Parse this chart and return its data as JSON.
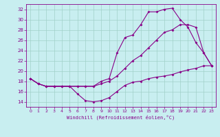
{
  "xlabel": "Windchill (Refroidissement éolien,°C)",
  "background_color": "#c8eef0",
  "grid_color": "#a0d0c8",
  "line_color": "#880088",
  "spine_color": "#660066",
  "xlim": [
    -0.5,
    23.5
  ],
  "ylim": [
    13,
    33
  ],
  "yticks": [
    14,
    16,
    18,
    20,
    22,
    24,
    26,
    28,
    30,
    32
  ],
  "xticks": [
    0,
    1,
    2,
    3,
    4,
    5,
    6,
    7,
    8,
    9,
    10,
    11,
    12,
    13,
    14,
    15,
    16,
    17,
    18,
    19,
    20,
    21,
    22,
    23
  ],
  "series1_x": [
    0,
    1,
    2,
    3,
    4,
    5,
    6,
    7,
    8,
    9,
    10,
    11,
    12,
    13,
    14,
    15,
    16,
    17,
    18,
    19,
    20,
    21,
    22,
    23
  ],
  "series1_y": [
    18.5,
    17.5,
    17.0,
    17.0,
    17.0,
    17.0,
    15.5,
    14.2,
    14.0,
    14.2,
    14.8,
    16.0,
    17.2,
    17.8,
    18.0,
    18.5,
    18.8,
    19.0,
    19.3,
    19.8,
    20.2,
    20.5,
    21.0,
    21.0
  ],
  "series2_x": [
    0,
    1,
    2,
    3,
    4,
    5,
    6,
    7,
    8,
    9,
    10,
    11,
    12,
    13,
    14,
    15,
    16,
    17,
    18,
    19,
    20,
    21,
    22,
    23
  ],
  "series2_y": [
    18.5,
    17.5,
    17.0,
    17.0,
    17.0,
    17.0,
    17.0,
    17.0,
    17.0,
    17.5,
    18.0,
    19.0,
    20.5,
    22.0,
    23.0,
    24.5,
    26.0,
    27.5,
    28.0,
    29.0,
    29.0,
    28.5,
    23.5,
    21.0
  ],
  "series3_x": [
    0,
    1,
    2,
    3,
    4,
    5,
    6,
    7,
    8,
    9,
    10,
    11,
    12,
    13,
    14,
    15,
    16,
    17,
    18,
    19,
    20,
    21,
    22,
    23
  ],
  "series3_y": [
    18.5,
    17.5,
    17.0,
    17.0,
    17.0,
    17.0,
    17.0,
    17.0,
    17.0,
    18.0,
    18.5,
    23.5,
    26.5,
    27.0,
    29.0,
    31.5,
    31.5,
    32.0,
    32.2,
    30.0,
    28.5,
    25.5,
    23.5,
    21.0
  ]
}
